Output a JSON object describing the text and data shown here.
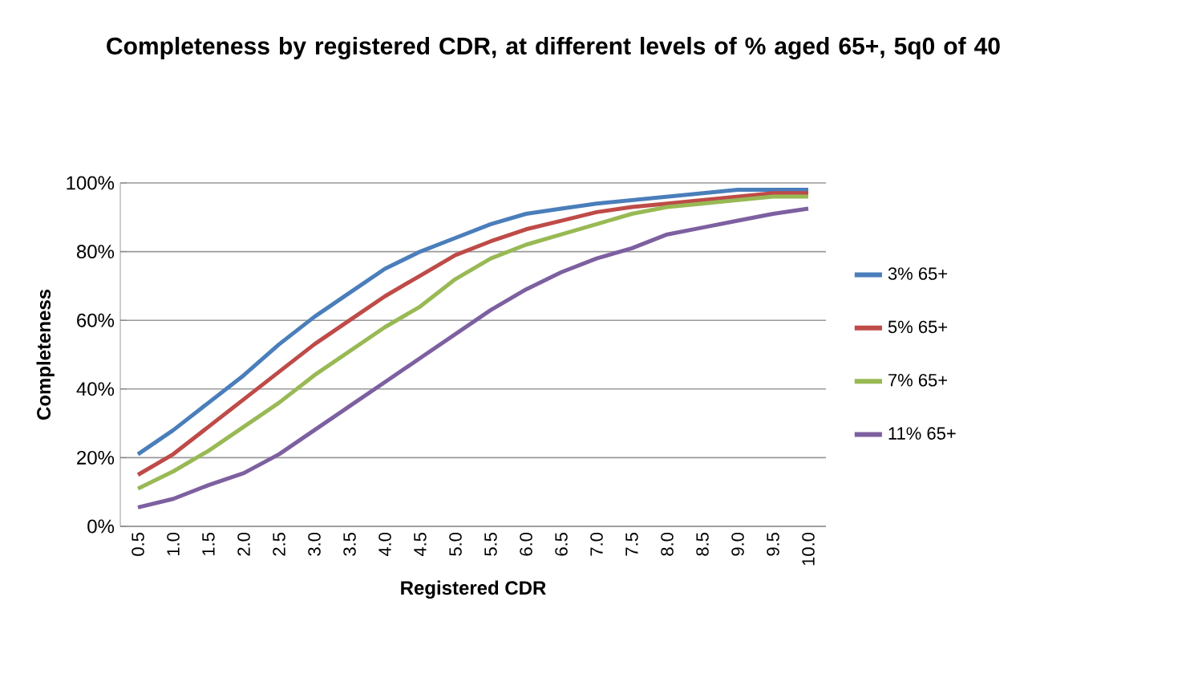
{
  "chart_data": {
    "type": "line",
    "title": "Completeness by registered CDR, at different levels of % aged 65+, 5q0 of 40",
    "xlabel": "Registered CDR",
    "ylabel": "Completeness",
    "categories": [
      "0.5",
      "1.0",
      "1.5",
      "2.0",
      "2.5",
      "3.0",
      "3.5",
      "4.0",
      "4.5",
      "5.0",
      "5.5",
      "6.0",
      "6.5",
      "7.0",
      "7.5",
      "8.0",
      "8.5",
      "9.0",
      "9.5",
      "10.0"
    ],
    "series": [
      {
        "name": "3% 65+",
        "color": "#4a7ebb",
        "values": [
          21,
          28,
          36,
          44,
          53,
          61,
          68,
          75,
          80,
          84,
          88,
          91,
          92.5,
          94,
          95,
          96,
          97,
          98,
          98,
          98
        ]
      },
      {
        "name": "5% 65+",
        "color": "#be4b48",
        "values": [
          15,
          21,
          29,
          37,
          45,
          53,
          60,
          67,
          73,
          79,
          83,
          86.5,
          89,
          91.5,
          93,
          94,
          95,
          96,
          97,
          97
        ]
      },
      {
        "name": "7% 65+",
        "color": "#98b954",
        "values": [
          11,
          16,
          22,
          29,
          36,
          44,
          51,
          58,
          64,
          72,
          78,
          82,
          85,
          88,
          91,
          93,
          94,
          95,
          96,
          96
        ]
      },
      {
        "name": "11% 65+",
        "color": "#7d60a0",
        "values": [
          5.5,
          8,
          12,
          15.5,
          21,
          28,
          35,
          42,
          49,
          56,
          63,
          69,
          74,
          78,
          81,
          85,
          87,
          89,
          91,
          92.5
        ]
      }
    ],
    "ylim": [
      0,
      100
    ],
    "yticks": [
      {
        "value": 0,
        "label": "0%"
      },
      {
        "value": 20,
        "label": "20%"
      },
      {
        "value": 40,
        "label": "40%"
      },
      {
        "value": 60,
        "label": "60%"
      },
      {
        "value": 80,
        "label": "80%"
      },
      {
        "value": 100,
        "label": "100%"
      }
    ],
    "grid": "y",
    "legend": "right",
    "marker": "none",
    "line_style": "solid"
  }
}
